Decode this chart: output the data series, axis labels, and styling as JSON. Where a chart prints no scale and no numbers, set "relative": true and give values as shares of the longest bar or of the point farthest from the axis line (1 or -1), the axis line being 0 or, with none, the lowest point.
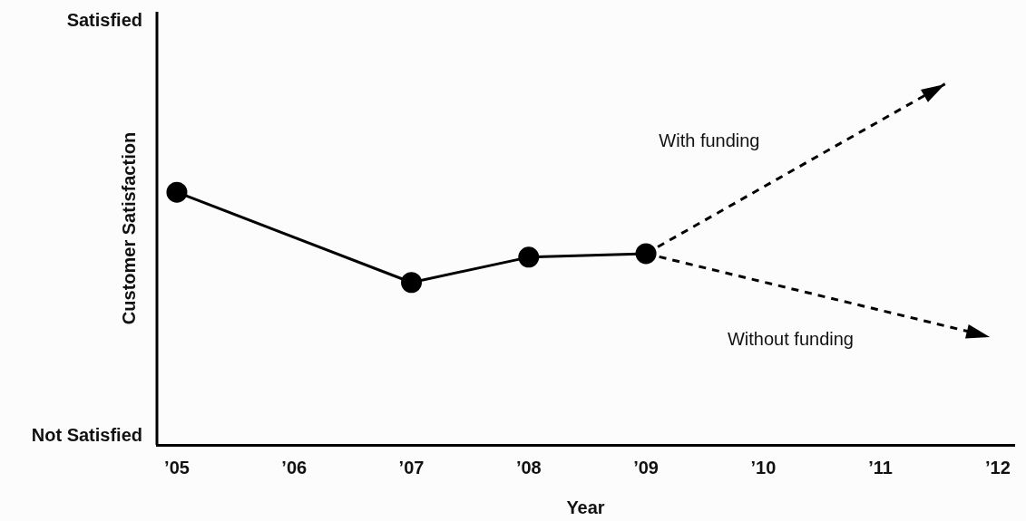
{
  "chart_data": {
    "type": "line",
    "xlabel": "Year",
    "ylabel": "Customer Satisfaction",
    "relative": true,
    "annotations": [
      "Satisfied",
      "Not Satisfied"
    ],
    "xlim": [
      2004.83,
      2012.14
    ],
    "xticks": [
      {
        "value": 2005,
        "label": "’05"
      },
      {
        "value": 2006,
        "label": "’06"
      },
      {
        "value": 2007,
        "label": "’07"
      },
      {
        "value": 2008,
        "label": "’08"
      },
      {
        "value": 2009,
        "label": "’09"
      },
      {
        "value": 2010,
        "label": "’10"
      },
      {
        "value": 2011,
        "label": "’11"
      },
      {
        "value": 2012,
        "label": "’12"
      }
    ],
    "grid": false,
    "legend": false,
    "series": [
      {
        "color": "#000000",
        "x": [
          2005,
          2007,
          2008,
          2009
        ],
        "values": [
          0.7,
          0.45,
          0.52,
          0.53
        ],
        "marker": "circle",
        "line_style": "solid"
      },
      {
        "name": "With funding",
        "color": "#000000",
        "x": [
          2009,
          2011.55
        ],
        "values": [
          0.53,
          1
        ],
        "marker": "none",
        "line_style": "dashed"
      },
      {
        "name": "Without funding",
        "color": "#000000",
        "x": [
          2009,
          2011.93
        ],
        "values": [
          0.53,
          0.3
        ],
        "marker": "none",
        "line_style": "dashed"
      }
    ]
  }
}
